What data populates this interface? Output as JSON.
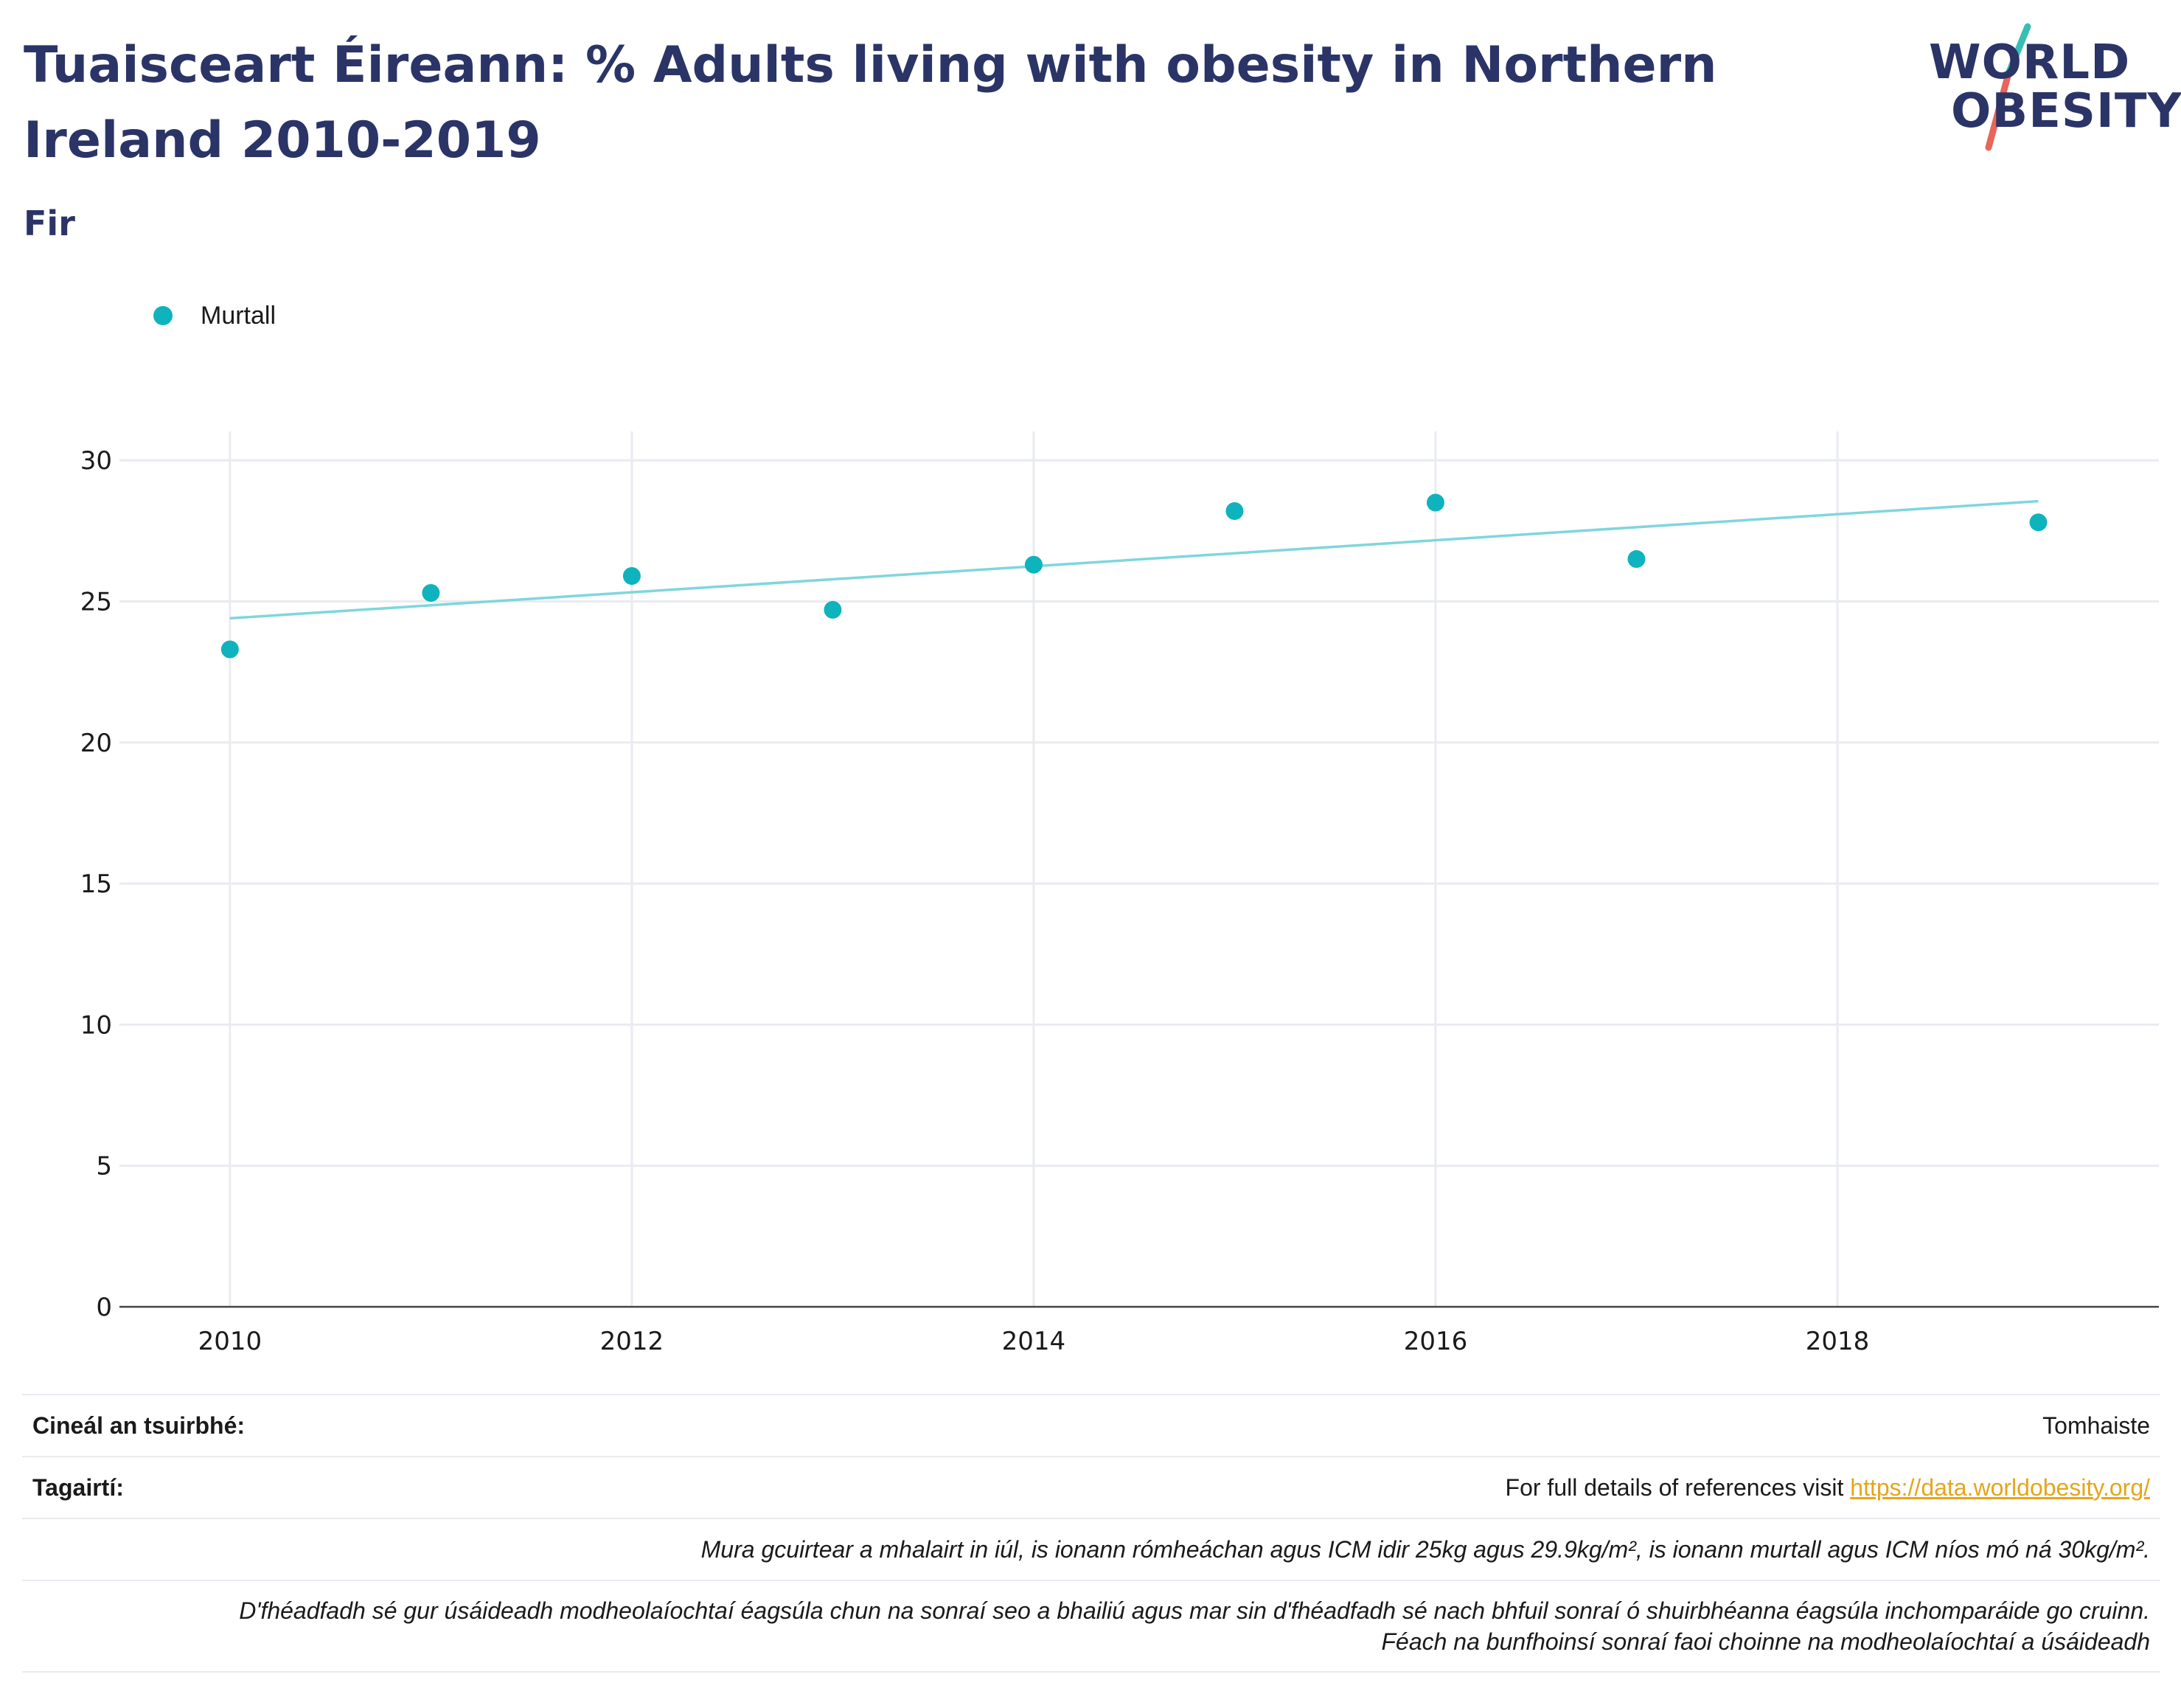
{
  "header": {
    "title": "Tuaisceart Éireann: % Adults living with obesity in Northern Ireland 2010-2019",
    "subtitle": "Fir"
  },
  "logo": {
    "line1": "WORLD",
    "line2": "OBESITY",
    "slash_colors": [
      "#38bfb3",
      "#e8655a"
    ]
  },
  "legend": {
    "label": "Murtall",
    "color": "#0eb3bd"
  },
  "chart_data": {
    "type": "scatter",
    "x": [
      2010,
      2011,
      2012,
      2013,
      2014,
      2015,
      2016,
      2017,
      2018,
      2019
    ],
    "series": [
      {
        "name": "Murtall",
        "x": [
          2010,
          2011,
          2012,
          2013,
          2014,
          2015,
          2016,
          2017,
          2019
        ],
        "values": [
          23.3,
          25.3,
          25.9,
          24.7,
          26.3,
          28.2,
          28.5,
          26.5,
          27.8
        ],
        "color": "#0eb3bd"
      }
    ],
    "trendline": {
      "x": [
        2010,
        2019
      ],
      "values": [
        24.4,
        28.55
      ],
      "color": "#7fd6dd"
    },
    "xticks": [
      "2010",
      "2012",
      "2014",
      "2016",
      "2018"
    ],
    "yticks": [
      "0",
      "5",
      "10",
      "15",
      "20",
      "25",
      "30"
    ],
    "xlim": [
      2009.45,
      2019.6
    ],
    "ylim": [
      0,
      30.5
    ],
    "grid": true,
    "legend_position": "top-left"
  },
  "info": {
    "survey_type_label": "Cineál an tsuirbhé:",
    "survey_type_value": "Tomhaiste",
    "references_label": "Tagairtí:",
    "references_text": "For full details of references visit",
    "references_link": "https://data.worldobesity.org/",
    "note1": "Mura gcuirtear a mhalairt in iúl, is ionann rómheáchan agus ICM idir 25kg agus 29.9kg/m², is ionann murtall agus ICM níos mó ná 30kg/m².",
    "note2_line1": "D'fhéadfadh sé gur úsáideadh modheolaíochtaí éagsúla chun na sonraí seo a bhailiú agus mar sin d'fhéadfadh sé nach bhfuil sonraí ó shuirbhéanna éagsúla inchomparáide go cruinn.",
    "note2_line2": "Féach na bunfhoinsí sonraí faoi choinne na modheolaíochtaí a úsáideadh"
  }
}
